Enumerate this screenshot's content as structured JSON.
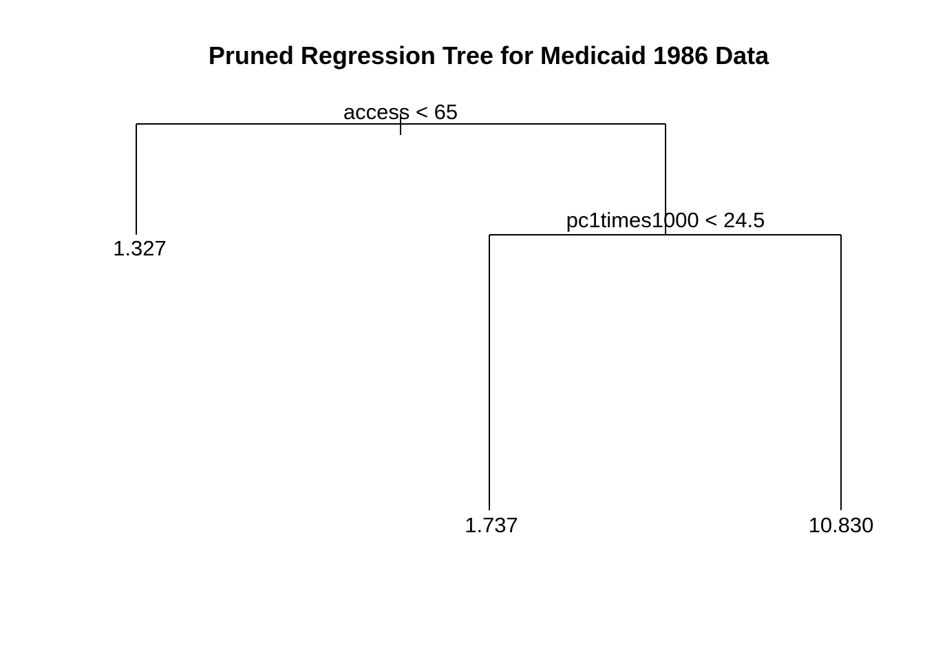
{
  "title": "Pruned Regression Tree for Medicaid 1986 Data",
  "tree": {
    "root": {
      "split_label": "access < 65",
      "left": {
        "leaf_value": "1.327"
      },
      "right": {
        "split_label": "pc1times1000 < 24.5",
        "left": {
          "leaf_value": "1.737"
        },
        "right": {
          "leaf_value": "10.830"
        }
      }
    }
  }
}
